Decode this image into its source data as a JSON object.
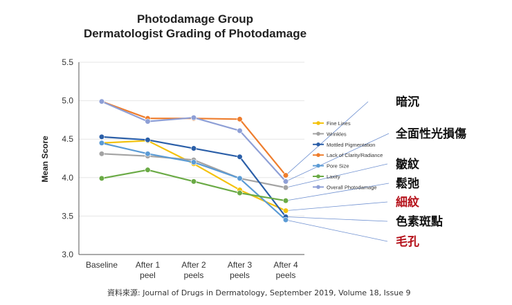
{
  "chart_data": {
    "type": "line",
    "title": [
      "Photodamage Group",
      "Dermatologist Grading of Photodamage"
    ],
    "xlabel": "",
    "ylabel": "Mean Score",
    "ylim": [
      3.0,
      5.5
    ],
    "yticks": [
      "3.0",
      "3.5",
      "4.0",
      "4.5",
      "5.0",
      "5.5"
    ],
    "categories": [
      [
        "Baseline"
      ],
      [
        "After 1",
        "peel"
      ],
      [
        "After 2",
        "peels"
      ],
      [
        "After 3",
        "peels"
      ],
      [
        "After 4",
        "peels"
      ]
    ],
    "series": [
      {
        "name": "Fine Lines",
        "color": "#f4c20d",
        "values": [
          4.45,
          4.48,
          4.18,
          3.84,
          3.57
        ]
      },
      {
        "name": "Wrinkles",
        "color": "#a3a3a3",
        "values": [
          4.31,
          4.28,
          4.23,
          3.99,
          3.87
        ]
      },
      {
        "name": "Mottled Pigmentation",
        "color": "#2b5fa8",
        "values": [
          4.53,
          4.49,
          4.38,
          4.27,
          3.49
        ]
      },
      {
        "name": "Lack of Clarity/Radiance",
        "color": "#ee7d2d",
        "values": [
          4.99,
          4.77,
          4.77,
          4.76,
          4.03
        ]
      },
      {
        "name": "Pore Size",
        "color": "#5b9bd5",
        "values": [
          4.45,
          4.31,
          4.2,
          3.99,
          3.45
        ]
      },
      {
        "name": "Laxity",
        "color": "#6aaa45",
        "values": [
          3.99,
          4.1,
          3.95,
          3.8,
          3.7
        ]
      },
      {
        "name": "Overall Photodamage",
        "color": "#8e9fd6",
        "values": [
          4.99,
          4.73,
          4.78,
          4.61,
          3.95
        ]
      }
    ]
  },
  "annotations": [
    {
      "text": "暗沉",
      "color": "#111111",
      "series": "Lack of Clarity/Radiance"
    },
    {
      "text": "全面性光損傷",
      "color": "#111111",
      "series": "Overall Photodamage"
    },
    {
      "text": "皺紋",
      "color": "#111111",
      "series": "Wrinkles"
    },
    {
      "text": "鬆弛",
      "color": "#111111",
      "series": "Laxity"
    },
    {
      "text": "細紋",
      "color": "#b5121b",
      "series": "Fine Lines"
    },
    {
      "text": "色素斑點",
      "color": "#111111",
      "series": "Mottled Pigmentation"
    },
    {
      "text": "毛孔",
      "color": "#b5121b",
      "series": "Pore Size"
    }
  ],
  "source": "資料來源: Journal of Drugs in Dermatology, September 2019, Volume 18, Issue 9"
}
